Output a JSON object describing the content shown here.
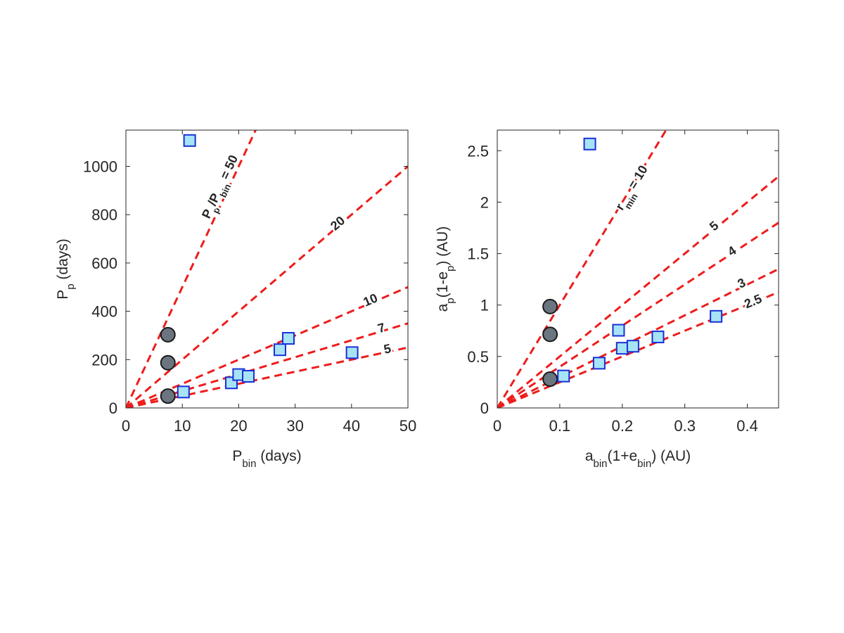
{
  "chart_data": [
    {
      "type": "scatter",
      "xlabel": {
        "base": "P",
        "sub": "bin",
        "suffix": " (days)"
      },
      "ylabel": {
        "base": "P",
        "sub": "p",
        "suffix": " (days)"
      },
      "xlim": [
        0,
        50
      ],
      "ylim": [
        0,
        1150
      ],
      "xticks": [
        0,
        10,
        20,
        30,
        40,
        50
      ],
      "yticks": [
        0,
        200,
        400,
        600,
        800,
        1000
      ],
      "grid": false,
      "ratio_lines": [
        {
          "slope": 50,
          "label": "P_p/P_bin = 50",
          "label_parts": [
            {
              "t": "P"
            },
            {
              "t": "p",
              "sub": true
            },
            {
              "t": "/P"
            },
            {
              "t": "bin",
              "sub": true
            },
            {
              "t": " = 50"
            }
          ]
        },
        {
          "slope": 20,
          "label": "20"
        },
        {
          "slope": 10,
          "label": "10"
        },
        {
          "slope": 7,
          "label": "7"
        },
        {
          "slope": 5,
          "label": "5"
        }
      ],
      "series": [
        {
          "name": "circles",
          "marker": "circle",
          "color": "#6b7580",
          "x": [
            7.45,
            7.45,
            7.45
          ],
          "y": [
            49,
            187,
            303
          ]
        },
        {
          "name": "squares",
          "marker": "square",
          "color": "#a6e4f5",
          "x": [
            11.3,
            10.2,
            18.7,
            20.0,
            21.7,
            27.3,
            28.8,
            40.1
          ],
          "y": [
            1107,
            66,
            104,
            138,
            131,
            241,
            288,
            229
          ]
        }
      ]
    },
    {
      "type": "scatter",
      "xlabel": {
        "parts": [
          {
            "t": "a"
          },
          {
            "t": "bin",
            "sub": true
          },
          {
            "t": "(1+e"
          },
          {
            "t": "bin",
            "sub": true
          },
          {
            "t": ") (AU)"
          }
        ]
      },
      "ylabel": {
        "parts": [
          {
            "t": "a"
          },
          {
            "t": "p",
            "sub": true
          },
          {
            "t": "(1-e"
          },
          {
            "t": "p",
            "sub": true
          },
          {
            "t": ") (AU)"
          }
        ]
      },
      "xlim": [
        0,
        0.45
      ],
      "ylim": [
        0,
        2.7
      ],
      "xticks": [
        0,
        0.1,
        0.2,
        0.3,
        0.4
      ],
      "xtick_labels": [
        "0",
        "0.1",
        "0.2",
        "0.3",
        "0.4"
      ],
      "yticks": [
        0,
        0.5,
        1,
        1.5,
        2,
        2.5
      ],
      "ytick_labels": [
        "0",
        "0.5",
        "1",
        "1.5",
        "2",
        "2.5"
      ],
      "grid": false,
      "ratio_lines": [
        {
          "slope": 10,
          "label": "r_min = 10",
          "label_parts": [
            {
              "t": "r"
            },
            {
              "t": "min",
              "sub": true
            },
            {
              "t": " = 10"
            }
          ]
        },
        {
          "slope": 5,
          "label": "5"
        },
        {
          "slope": 4,
          "label": "4"
        },
        {
          "slope": 3,
          "label": "3"
        },
        {
          "slope": 2.5,
          "label": "2.5"
        }
      ],
      "series": [
        {
          "name": "circles",
          "marker": "circle",
          "color": "#6b7580",
          "x": [
            0.0845,
            0.0845,
            0.0845
          ],
          "y": [
            0.985,
            0.715,
            0.28
          ]
        },
        {
          "name": "squares",
          "marker": "square",
          "color": "#a6e4f5",
          "x": [
            0.148,
            0.106,
            0.163,
            0.194,
            0.2,
            0.217,
            0.257,
            0.35
          ],
          "y": [
            2.565,
            0.31,
            0.435,
            0.755,
            0.58,
            0.6,
            0.69,
            0.89
          ]
        }
      ]
    }
  ],
  "colors": {
    "line": "#ee1c1c",
    "marker_edge_circle": "#1a1a1a",
    "marker_edge_square": "#1a2fd6",
    "axes": "#262626"
  }
}
